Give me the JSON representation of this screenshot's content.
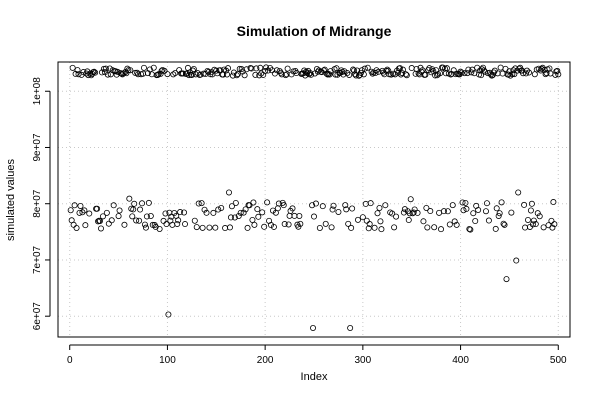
{
  "chart_data": {
    "type": "scatter",
    "title": "Simulation of Midrange",
    "xlabel": "Index",
    "ylabel": "simulated values",
    "xlim": [
      -12,
      512
    ],
    "ylim": [
      56300000,
      105200000
    ],
    "xticks": [
      0,
      100,
      200,
      300,
      400,
      500
    ],
    "xtick_labels": [
      "0",
      "100",
      "200",
      "300",
      "400",
      "500"
    ],
    "yticks": [
      60000000,
      70000000,
      80000000,
      90000000,
      100000000
    ],
    "ytick_labels": [
      "6e+07",
      "7e+07",
      "8e+07",
      "9e+07",
      "1e+08"
    ],
    "grid": true,
    "series": [
      {
        "marker": "open-circle",
        "upper_band_y": [
          103100000,
          103000000,
          102900000,
          103300000,
          103600000,
          103800000,
          104100000
        ],
        "lower_band_y": [
          80100000,
          79700000,
          79100000,
          78800000,
          78400000,
          77700000,
          77000000,
          76300000,
          75800000,
          75600000
        ],
        "outliers": [
          {
            "x": 101,
            "y": 60300000
          },
          {
            "x": 163,
            "y": 82000000
          },
          {
            "x": 249,
            "y": 57900000
          },
          {
            "x": 287,
            "y": 57900000
          },
          {
            "x": 349,
            "y": 80800000
          },
          {
            "x": 447,
            "y": 66600000
          },
          {
            "x": 457,
            "y": 69900000
          },
          {
            "x": 459,
            "y": 82000000
          },
          {
            "x": 61,
            "y": 80900000
          },
          {
            "x": 495,
            "y": 80300000
          },
          {
            "x": 410,
            "y": 75400000
          },
          {
            "x": 485,
            "y": 75800000
          }
        ]
      }
    ]
  }
}
